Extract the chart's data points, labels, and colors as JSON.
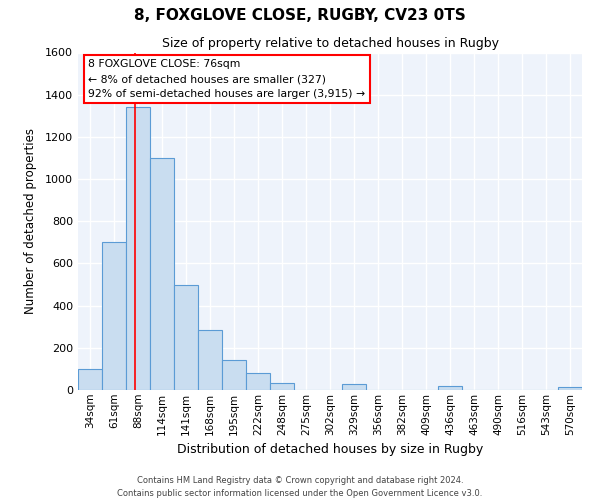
{
  "title": "8, FOXGLOVE CLOSE, RUGBY, CV23 0TS",
  "subtitle": "Size of property relative to detached houses in Rugby",
  "xlabel": "Distribution of detached houses by size in Rugby",
  "ylabel": "Number of detached properties",
  "bar_labels": [
    "34sqm",
    "61sqm",
    "88sqm",
    "114sqm",
    "141sqm",
    "168sqm",
    "195sqm",
    "222sqm",
    "248sqm",
    "275sqm",
    "302sqm",
    "329sqm",
    "356sqm",
    "382sqm",
    "409sqm",
    "436sqm",
    "463sqm",
    "490sqm",
    "516sqm",
    "543sqm",
    "570sqm"
  ],
  "bar_values": [
    100,
    700,
    1340,
    1100,
    500,
    285,
    140,
    80,
    35,
    0,
    0,
    30,
    0,
    0,
    0,
    20,
    0,
    0,
    0,
    0,
    15
  ],
  "bar_color": "#c9ddf0",
  "bar_edge_color": "#5b9bd5",
  "ylim": [
    0,
    1600
  ],
  "yticks": [
    0,
    200,
    400,
    600,
    800,
    1000,
    1200,
    1400,
    1600
  ],
  "red_line_x": 1.87,
  "annotation_text_line1": "8 FOXGLOVE CLOSE: 76sqm",
  "annotation_text_line2": "← 8% of detached houses are smaller (327)",
  "annotation_text_line3": "92% of semi-detached houses are larger (3,915) →",
  "footer_line1": "Contains HM Land Registry data © Crown copyright and database right 2024.",
  "footer_line2": "Contains public sector information licensed under the Open Government Licence v3.0.",
  "bg_color": "#ffffff",
  "plot_bg_color": "#eef3fb"
}
